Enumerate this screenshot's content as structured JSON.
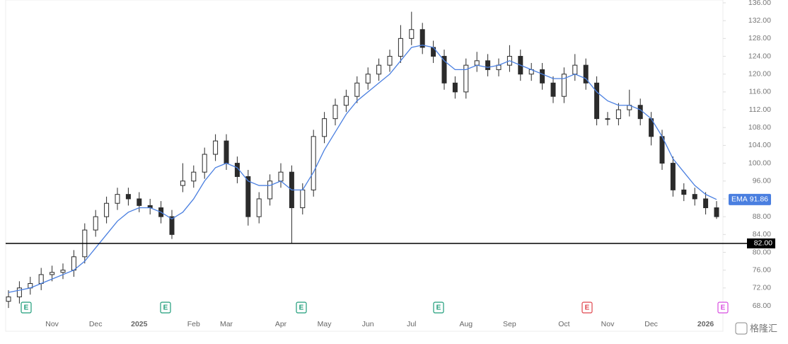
{
  "chart_data": {
    "type": "candlestick",
    "categories": [
      null,
      null,
      null,
      null,
      "Nov",
      null,
      null,
      null,
      "Dec",
      null,
      null,
      null,
      "2025",
      null,
      null,
      null,
      null,
      "Feb",
      null,
      null,
      "Mar",
      null,
      null,
      null,
      null,
      "Apr",
      null,
      null,
      null,
      "May",
      null,
      null,
      null,
      "Jun",
      null,
      null,
      null,
      "Jul",
      null,
      null,
      null,
      null,
      "Aug",
      null,
      null,
      null,
      "Sep",
      null,
      null,
      null,
      null,
      "Oct",
      null,
      null,
      null,
      "Nov",
      null,
      null,
      null,
      "Dec",
      null,
      null,
      null,
      null,
      "2026",
      null
    ],
    "open": [
      69,
      70,
      72,
      73,
      75,
      75.5,
      76,
      79,
      85,
      88,
      91,
      93,
      92,
      90.5,
      90,
      88,
      95,
      96,
      98,
      102,
      105,
      100,
      97,
      88,
      92,
      96,
      98,
      90,
      94,
      106,
      110,
      113,
      115,
      118,
      120,
      122,
      124,
      128,
      130,
      126,
      124,
      118,
      116,
      122,
      123,
      121,
      122,
      124,
      120,
      121,
      118,
      115,
      120,
      122,
      118,
      110,
      110,
      112,
      113,
      110,
      106,
      100,
      94,
      93,
      92,
      90
    ],
    "high": [
      71.5,
      73.5,
      74.5,
      76.5,
      77,
      77.5,
      80.5,
      86.5,
      89.5,
      92.5,
      94.5,
      94.5,
      93.5,
      92,
      91.5,
      89.5,
      100,
      99.5,
      103.5,
      106.5,
      106.5,
      101.5,
      98.5,
      93.5,
      97.5,
      100,
      99.5,
      95.5,
      107.5,
      111.5,
      114.5,
      116.5,
      119.5,
      121.5,
      123.5,
      125.5,
      131,
      134,
      131.5,
      127.5,
      125.5,
      119.5,
      123.5,
      125,
      124.5,
      123.5,
      126.5,
      125.5,
      122.5,
      122.5,
      119.5,
      121.5,
      124.5,
      123.5,
      119.5,
      111.5,
      113.5,
      116.5,
      114.5,
      111.5,
      107.5,
      101.5,
      95.5,
      94.5,
      93.5,
      91.5
    ],
    "low": [
      67.5,
      68.5,
      70.5,
      71.5,
      73.5,
      74,
      74.5,
      77.5,
      83.5,
      86.5,
      89.5,
      90.5,
      89,
      88.5,
      86.5,
      83,
      93.5,
      94.5,
      96.5,
      100.5,
      98.5,
      95.5,
      86,
      86.5,
      90.5,
      94.5,
      82,
      88.5,
      92.5,
      104.5,
      108.5,
      111.5,
      113.5,
      116.5,
      118.5,
      120.5,
      122.5,
      126.5,
      124.5,
      122.5,
      116.5,
      114.5,
      114.5,
      120.5,
      119.5,
      119.5,
      120.5,
      118.5,
      118.5,
      116.5,
      113.5,
      113.5,
      118.5,
      116.5,
      108.5,
      108.5,
      108.5,
      110.5,
      108.5,
      104,
      98.5,
      92.5,
      91.5,
      90.5,
      88.5,
      87.5
    ],
    "close": [
      70,
      72,
      73,
      75,
      75.5,
      76,
      79,
      85,
      88,
      91,
      93,
      92,
      90.5,
      90,
      88,
      84,
      96,
      98,
      102,
      105,
      100,
      97,
      88,
      92,
      96,
      98,
      90,
      94,
      106,
      110,
      113,
      115,
      118,
      120,
      122,
      124,
      128,
      130,
      126,
      124,
      118,
      116,
      122,
      123,
      121,
      122,
      124,
      120,
      121,
      118,
      115,
      120,
      122,
      118,
      110,
      110,
      112,
      113,
      110,
      106,
      100,
      94,
      93,
      92,
      90,
      88
    ],
    "candle_color": "#2b2b2b",
    "ema": {
      "name": "EMA",
      "color": "#4a7fe0",
      "values": [
        71,
        71.5,
        72,
        73,
        74,
        75,
        76,
        78,
        81,
        84,
        87,
        89,
        90,
        90,
        89,
        87.5,
        89,
        92,
        96,
        99,
        100,
        99,
        96,
        95,
        95,
        96,
        94,
        94,
        98,
        103,
        107,
        111,
        114,
        116,
        118,
        120,
        123,
        126,
        126.5,
        126,
        123,
        121,
        121,
        122,
        121.5,
        122,
        123,
        122,
        121,
        120,
        119,
        119,
        120,
        119,
        116,
        114,
        113,
        113,
        112,
        110,
        106,
        101,
        98,
        95,
        93,
        91.86
      ]
    },
    "ylim": [
      68,
      136
    ],
    "yticks": [
      {
        "value": 68,
        "label": "68.00"
      },
      {
        "value": 72,
        "label": "72.00"
      },
      {
        "value": 76,
        "label": "76.00"
      },
      {
        "value": 80,
        "label": "80.00"
      },
      {
        "value": 84,
        "label": "84.00"
      },
      {
        "value": 88,
        "label": "88.00"
      },
      {
        "value": 92,
        "label": "92.00"
      },
      {
        "value": 96,
        "label": "96.00"
      },
      {
        "value": 100,
        "label": "100.00"
      },
      {
        "value": 104,
        "label": "104.00"
      },
      {
        "value": 108,
        "label": "108.00"
      },
      {
        "value": 112,
        "label": "112.00"
      },
      {
        "value": 116,
        "label": "116.00"
      },
      {
        "value": 120,
        "label": "120.00"
      },
      {
        "value": 124,
        "label": "124.00"
      },
      {
        "value": 128,
        "label": "128.00"
      },
      {
        "value": 132,
        "label": "132.00"
      },
      {
        "value": 136,
        "label": "136.00"
      }
    ],
    "hline": {
      "value": 82,
      "label": "82.00"
    },
    "earnings": [
      {
        "label": "E",
        "color": "#1f9d7a"
      },
      {
        "label": "E",
        "color": "#1f9d7a"
      },
      {
        "label": "E",
        "color": "#1f9d7a"
      },
      {
        "label": "E",
        "color": "#1f9d7a"
      },
      {
        "label": "E",
        "color": "#e0464e"
      },
      {
        "label": "E",
        "color": "#d84ee0"
      }
    ],
    "watermark": "格隆汇"
  }
}
